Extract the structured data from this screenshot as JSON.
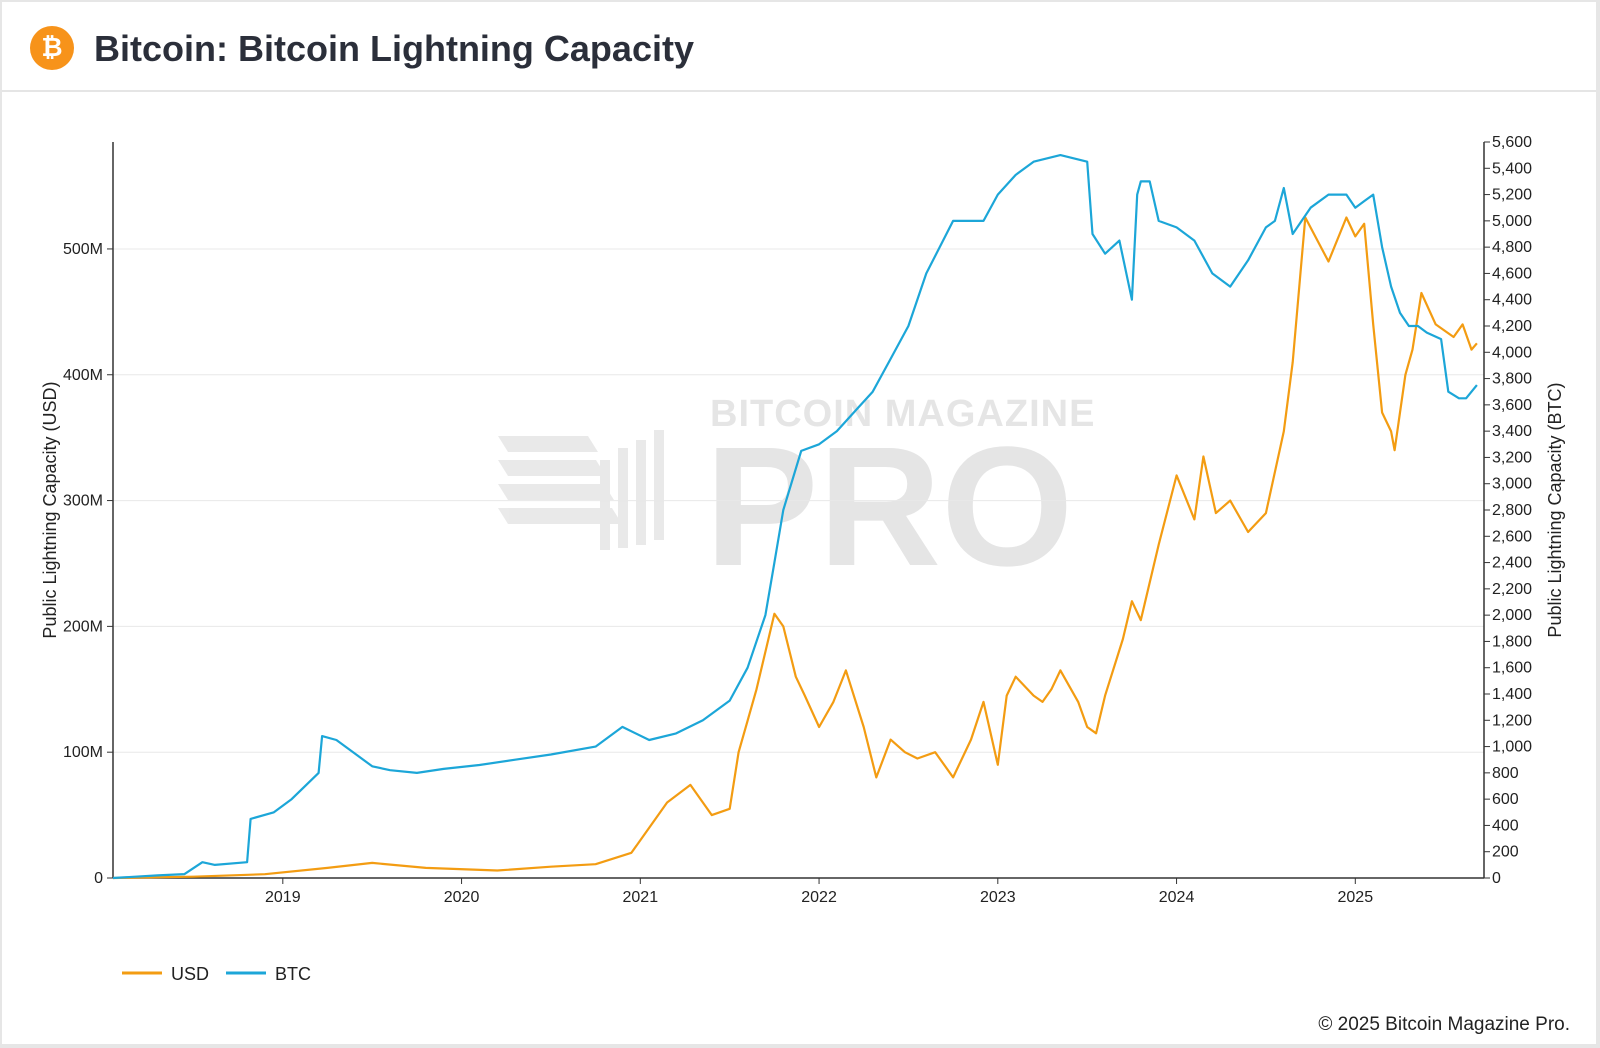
{
  "header": {
    "title": "Bitcoin: Bitcoin Lightning Capacity",
    "logo_symbol": "₿",
    "logo_color": "#f7931a"
  },
  "footer": {
    "copyright": "© 2025 Bitcoin Magazine Pro."
  },
  "watermark": {
    "line1": "BITCOIN MAGAZINE",
    "line2": "PRO"
  },
  "chart_data": {
    "type": "line",
    "title": "",
    "xlabel": "",
    "ylabel_left": "Public Lightning Capacity (USD)",
    "ylabel_right": "Public Lightning Capacity (BTC)",
    "xlim": [
      2018.05,
      2025.72
    ],
    "ylim_left": [
      0,
      585000000
    ],
    "ylim_right": [
      0,
      5600
    ],
    "x_ticks": [
      2019,
      2020,
      2021,
      2022,
      2023,
      2024,
      2025
    ],
    "x_tick_labels": [
      "2019",
      "2020",
      "2021",
      "2022",
      "2023",
      "2024",
      "2025"
    ],
    "y_left_ticks": [
      0,
      100000000,
      200000000,
      300000000,
      400000000,
      500000000
    ],
    "y_left_tick_labels": [
      "0",
      "100M",
      "200M",
      "300M",
      "400M",
      "500M"
    ],
    "y_right_ticks": [
      0,
      200,
      400,
      600,
      800,
      1000,
      1200,
      1400,
      1600,
      1800,
      2000,
      2200,
      2400,
      2600,
      2800,
      3000,
      3200,
      3400,
      3600,
      3800,
      4000,
      4200,
      4400,
      4600,
      4800,
      5000,
      5200,
      5400,
      5600
    ],
    "y_right_tick_labels": [
      "0",
      "200",
      "400",
      "600",
      "800",
      "1,000",
      "1,200",
      "1,400",
      "1,600",
      "1,800",
      "2,000",
      "2,200",
      "2,400",
      "2,600",
      "2,800",
      "3,000",
      "3,200",
      "3,400",
      "3,600",
      "3,800",
      "4,000",
      "4,200",
      "4,400",
      "4,600",
      "4,800",
      "5,000",
      "5,200",
      "5,400",
      "5,600"
    ],
    "grid": true,
    "legend_position": "bottom-left",
    "series": [
      {
        "name": "USD",
        "axis": "left",
        "color": "#f39c12",
        "x": [
          2018.05,
          2018.5,
          2018.9,
          2019.25,
          2019.5,
          2019.8,
          2020.2,
          2020.5,
          2020.75,
          2020.95,
          2021.05,
          2021.15,
          2021.28,
          2021.4,
          2021.5,
          2021.55,
          2021.6,
          2021.65,
          2021.75,
          2021.8,
          2021.87,
          2021.92,
          2022.0,
          2022.08,
          2022.15,
          2022.25,
          2022.32,
          2022.4,
          2022.48,
          2022.55,
          2022.65,
          2022.75,
          2022.85,
          2022.92,
          2023.0,
          2023.05,
          2023.1,
          2023.2,
          2023.25,
          2023.3,
          2023.35,
          2023.45,
          2023.5,
          2023.55,
          2023.6,
          2023.7,
          2023.75,
          2023.8,
          2023.9,
          2024.0,
          2024.1,
          2024.15,
          2024.22,
          2024.3,
          2024.4,
          2024.5,
          2024.6,
          2024.65,
          2024.72,
          2024.85,
          2024.95,
          2025.0,
          2025.05,
          2025.1,
          2025.15,
          2025.2,
          2025.22,
          2025.28,
          2025.32,
          2025.37,
          2025.45,
          2025.55,
          2025.6,
          2025.65,
          2025.68
        ],
        "values": [
          0,
          1000000,
          3000000,
          8000000,
          12000000,
          8000000,
          6000000,
          9000000,
          11000000,
          20000000,
          40000000,
          60000000,
          74000000,
          50000000,
          55000000,
          100000000,
          125000000,
          150000000,
          210000000,
          200000000,
          160000000,
          145000000,
          120000000,
          140000000,
          165000000,
          120000000,
          80000000,
          110000000,
          100000000,
          95000000,
          100000000,
          80000000,
          110000000,
          140000000,
          90000000,
          145000000,
          160000000,
          145000000,
          140000000,
          150000000,
          165000000,
          140000000,
          120000000,
          115000000,
          145000000,
          190000000,
          220000000,
          205000000,
          265000000,
          320000000,
          285000000,
          335000000,
          290000000,
          300000000,
          275000000,
          290000000,
          355000000,
          410000000,
          525000000,
          490000000,
          525000000,
          510000000,
          520000000,
          440000000,
          370000000,
          355000000,
          340000000,
          400000000,
          420000000,
          465000000,
          440000000,
          430000000,
          440000000,
          420000000,
          425000000
        ]
      },
      {
        "name": "BTC",
        "axis": "right",
        "color": "#1ca6d8",
        "x": [
          2018.05,
          2018.3,
          2018.45,
          2018.55,
          2018.62,
          2018.8,
          2018.82,
          2018.95,
          2019.05,
          2019.2,
          2019.22,
          2019.3,
          2019.4,
          2019.5,
          2019.6,
          2019.75,
          2019.9,
          2020.1,
          2020.3,
          2020.5,
          2020.75,
          2020.9,
          2021.05,
          2021.2,
          2021.35,
          2021.5,
          2021.6,
          2021.7,
          2021.75,
          2021.8,
          2021.9,
          2022.0,
          2022.1,
          2022.2,
          2022.3,
          2022.4,
          2022.5,
          2022.6,
          2022.75,
          2022.85,
          2022.92,
          2023.0,
          2023.1,
          2023.2,
          2023.35,
          2023.5,
          2023.53,
          2023.6,
          2023.68,
          2023.75,
          2023.78,
          2023.8,
          2023.85,
          2023.9,
          2024.0,
          2024.1,
          2024.2,
          2024.3,
          2024.4,
          2024.5,
          2024.55,
          2024.6,
          2024.65,
          2024.75,
          2024.85,
          2024.95,
          2025.0,
          2025.05,
          2025.1,
          2025.15,
          2025.2,
          2025.25,
          2025.3,
          2025.35,
          2025.4,
          2025.48,
          2025.52,
          2025.58,
          2025.62,
          2025.68
        ],
        "values": [
          0,
          20,
          30,
          120,
          100,
          120,
          450,
          500,
          600,
          800,
          1080,
          1050,
          950,
          850,
          820,
          800,
          830,
          860,
          900,
          940,
          1000,
          1150,
          1050,
          1100,
          1200,
          1350,
          1600,
          2000,
          2400,
          2800,
          3250,
          3300,
          3400,
          3550,
          3700,
          3950,
          4200,
          4600,
          5000,
          5000,
          5000,
          5200,
          5350,
          5450,
          5500,
          5450,
          4900,
          4750,
          4850,
          4400,
          5200,
          5300,
          5300,
          5000,
          4950,
          4850,
          4600,
          4500,
          4700,
          4950,
          5000,
          5250,
          4900,
          5100,
          5200,
          5200,
          5100,
          5150,
          5200,
          4800,
          4500,
          4300,
          4200,
          4200,
          4150,
          4100,
          3700,
          3650,
          3650,
          3750
        ]
      }
    ]
  }
}
